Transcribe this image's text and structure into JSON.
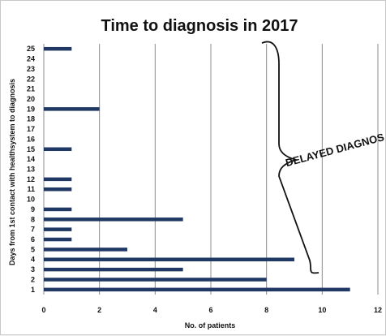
{
  "chart_data": {
    "type": "bar",
    "orientation": "horizontal",
    "title": "Time to diagnosis in 2017",
    "xlabel": "No. of patients",
    "ylabel": "Days from 1st contact with healthsystem  to diagnosis",
    "categories": [
      "1",
      "2",
      "3",
      "4",
      "5",
      "6",
      "7",
      "8",
      "9",
      "10",
      "11",
      "12",
      "13",
      "14",
      "15",
      "16",
      "17",
      "18",
      "19",
      "20",
      "21",
      "22",
      "23",
      "24",
      "25"
    ],
    "values": [
      11,
      8,
      5,
      9,
      3,
      1,
      1,
      5,
      1,
      0,
      1,
      1,
      0,
      0,
      1,
      0,
      0,
      0,
      2,
      0,
      0,
      0,
      0,
      0,
      1
    ],
    "xlim": [
      0,
      12
    ],
    "xticks": [
      "0",
      "2",
      "4",
      "6",
      "8",
      "10",
      "12"
    ],
    "grid": "vertical",
    "bar_color": "#1f3864",
    "annotation": "DELAYED DIAGNOS"
  }
}
